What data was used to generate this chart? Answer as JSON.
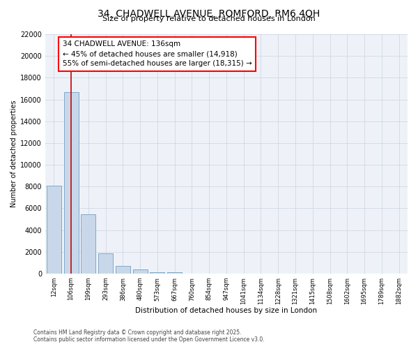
{
  "title_line1": "34, CHADWELL AVENUE, ROMFORD, RM6 4QH",
  "title_line2": "Size of property relative to detached houses in London",
  "xlabel": "Distribution of detached houses by size in London",
  "ylabel": "Number of detached properties",
  "categories": [
    "12sqm",
    "106sqm",
    "199sqm",
    "293sqm",
    "386sqm",
    "480sqm",
    "573sqm",
    "667sqm",
    "760sqm",
    "854sqm",
    "947sqm",
    "1041sqm",
    "1134sqm",
    "1228sqm",
    "1321sqm",
    "1415sqm",
    "1508sqm",
    "1602sqm",
    "1695sqm",
    "1789sqm",
    "1882sqm"
  ],
  "values": [
    8100,
    16700,
    5450,
    1850,
    700,
    380,
    150,
    120,
    0,
    0,
    0,
    0,
    0,
    0,
    0,
    0,
    0,
    0,
    0,
    0,
    0
  ],
  "bar_color": "#c8d8ea",
  "bar_edge_color": "#7fa8c8",
  "bar_linewidth": 0.7,
  "vline_x": 1,
  "vline_color": "#cc0000",
  "vline_linewidth": 1.2,
  "ylim": [
    0,
    22000
  ],
  "yticks": [
    0,
    2000,
    4000,
    6000,
    8000,
    10000,
    12000,
    14000,
    16000,
    18000,
    20000,
    22000
  ],
  "annotation_text": "34 CHADWELL AVENUE: 136sqm\n← 45% of detached houses are smaller (14,918)\n55% of semi-detached houses are larger (18,315) →",
  "grid_color": "#d0d8e4",
  "plot_bg_color": "#eef2f8",
  "fig_bg_color": "#ffffff",
  "footer_line1": "Contains HM Land Registry data © Crown copyright and database right 2025.",
  "footer_line2": "Contains public sector information licensed under the Open Government Licence v3.0."
}
